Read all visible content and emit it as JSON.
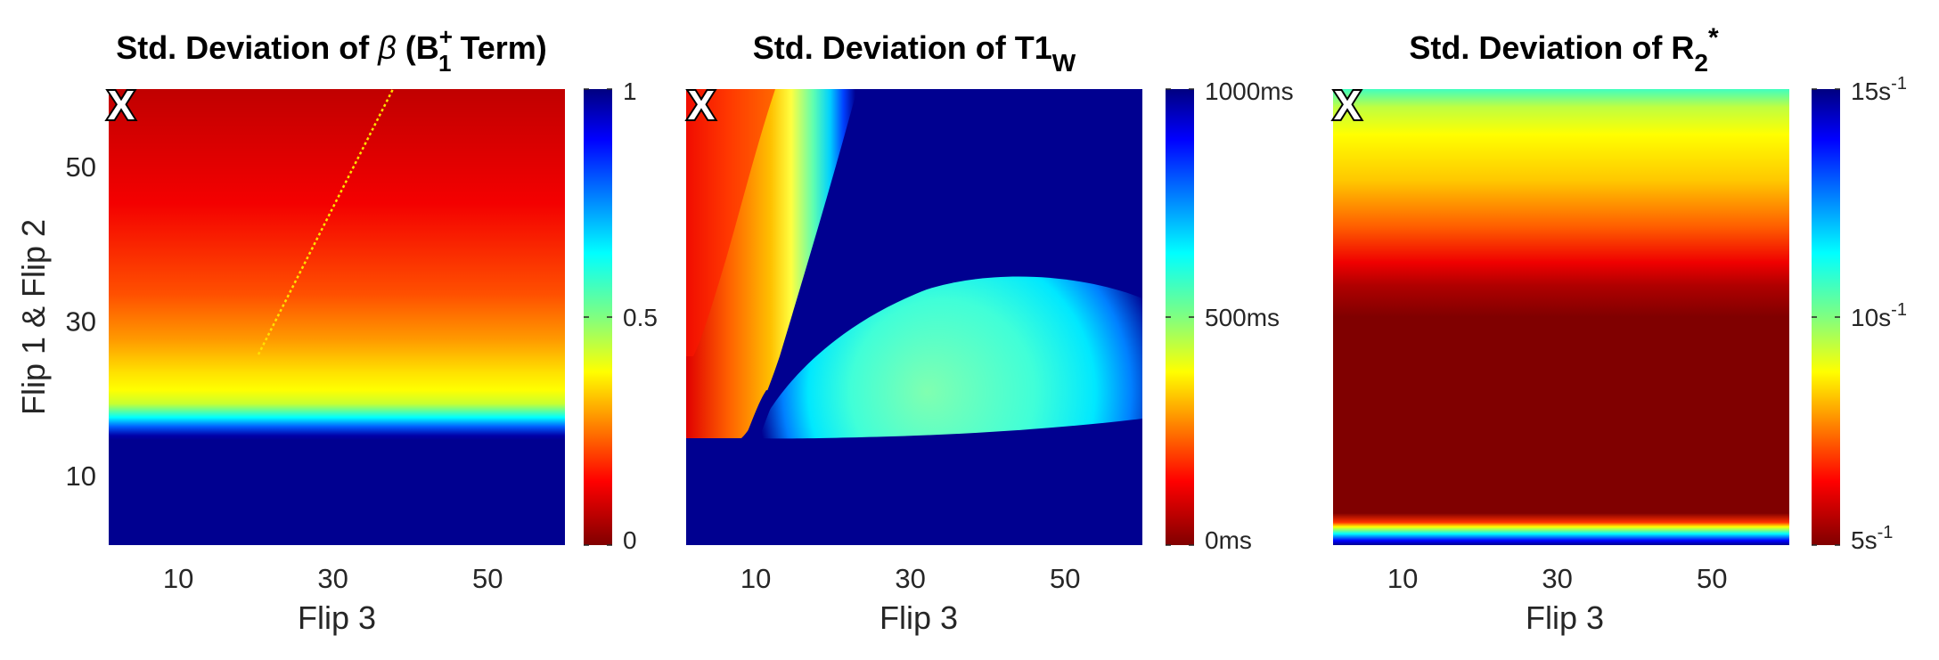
{
  "figure": {
    "shared_xlabel": "Flip 3",
    "shared_ylabel": "Flip 1 & Flip 2",
    "marker_label": "X"
  },
  "chart_data": [
    {
      "type": "heatmap",
      "title_prefix": "Std. Deviation of ",
      "title_symbol": "β",
      "title_open": " (B",
      "title_sup": "+",
      "title_sub": "1",
      "title_close": " Term)",
      "xlabel": "Flip 3",
      "ylabel": "Flip 1 & Flip 2",
      "xlim": [
        1,
        60
      ],
      "ylim": [
        1,
        60
      ],
      "xticks": [
        10,
        30,
        50
      ],
      "yticks": [
        10,
        30,
        50
      ],
      "xtick_labels": [
        "10",
        "30",
        "50"
      ],
      "ytick_labels": [
        "10",
        "30",
        "50"
      ],
      "colormap": "jet (reversed)",
      "clim": [
        0,
        1
      ],
      "colorbar_ticks": [
        0,
        0.5,
        1
      ],
      "colorbar_labels": [
        "0",
        "0.5",
        "1"
      ],
      "annotation": {
        "label": "X",
        "x": 3,
        "y": 58
      }
    },
    {
      "type": "heatmap",
      "title_prefix": "Std. Deviation of T1",
      "title_sub": "W",
      "xlabel": "Flip 3",
      "xlim": [
        1,
        60
      ],
      "ylim": [
        1,
        60
      ],
      "xticks": [
        10,
        30,
        50
      ],
      "xtick_labels": [
        "10",
        "30",
        "50"
      ],
      "colormap": "jet (reversed)",
      "clim": [
        0,
        1000
      ],
      "colorbar_ticks": [
        0,
        500,
        1000
      ],
      "colorbar_labels": [
        "0ms",
        "500ms",
        "1000ms"
      ],
      "annotation": {
        "label": "X",
        "x": 3,
        "y": 58
      }
    },
    {
      "type": "heatmap",
      "title_prefix": "Std. Deviation of R",
      "title_sub": "2",
      "title_sup": "*",
      "xlabel": "Flip 3",
      "xlim": [
        1,
        60
      ],
      "ylim": [
        1,
        60
      ],
      "xticks": [
        10,
        30,
        50
      ],
      "xtick_labels": [
        "10",
        "30",
        "50"
      ],
      "colormap": "jet (reversed)",
      "clim": [
        5,
        15
      ],
      "colorbar_ticks": [
        5,
        10,
        15
      ],
      "colorbar_labels": [
        {
          "base": "5s",
          "exp": "-1"
        },
        {
          "base": "10s",
          "exp": "-1"
        },
        {
          "base": "15s",
          "exp": "-1"
        }
      ],
      "annotation": {
        "label": "X",
        "x": 3,
        "y": 58
      }
    }
  ],
  "colors": {
    "jet_reversed": [
      "#000080",
      "#0000ff",
      "#00ffff",
      "#ffff00",
      "#ff0000",
      "#800000"
    ]
  }
}
